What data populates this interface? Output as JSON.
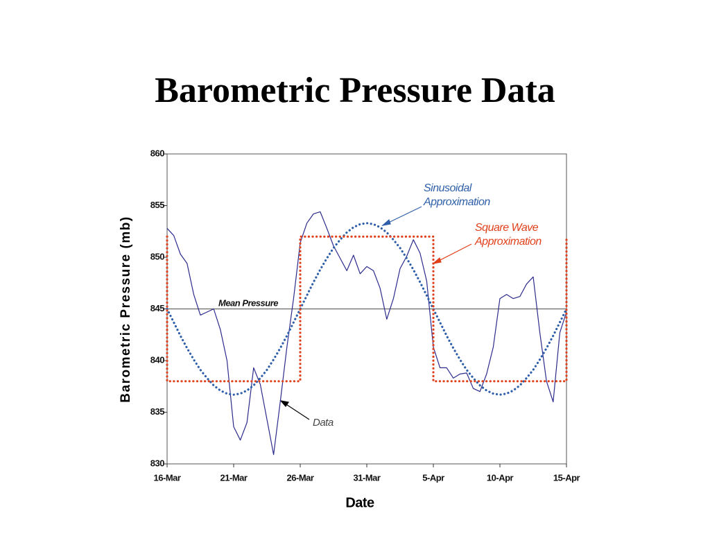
{
  "chart_data": {
    "type": "line",
    "title": "Barometric Pressure Data",
    "xlabel": "Date",
    "ylabel": "Barometric Pressure (mb)",
    "xlim": [
      0,
      30
    ],
    "ylim": [
      830,
      860
    ],
    "xticks": [
      {
        "value": 0,
        "label": "16-Mar"
      },
      {
        "value": 5,
        "label": "21-Mar"
      },
      {
        "value": 10,
        "label": "26-Mar"
      },
      {
        "value": 15,
        "label": "31-Mar"
      },
      {
        "value": 20,
        "label": "5-Apr"
      },
      {
        "value": 25,
        "label": "10-Apr"
      },
      {
        "value": 30,
        "label": "15-Apr"
      }
    ],
    "yticks": [
      830,
      835,
      840,
      845,
      850,
      855,
      860
    ],
    "hlines": [
      {
        "value": 845,
        "color": "#666666"
      }
    ],
    "series": [
      {
        "color": "#2b2a8c",
        "style": "solid",
        "x": [
          0,
          0.5,
          1,
          1.5,
          2,
          2.5,
          3,
          3.5,
          4,
          4.5,
          5,
          5.5,
          6,
          6.5,
          7,
          7.5,
          8,
          8.5,
          9,
          9.5,
          10,
          10.5,
          11,
          11.5,
          12,
          12.5,
          13,
          13.5,
          14,
          14.5,
          15,
          15.5,
          16,
          16.5,
          17,
          17.5,
          18,
          18.5,
          19,
          19.5,
          20,
          20.5,
          21,
          21.5,
          22,
          22.5,
          23,
          23.5,
          24,
          24.5,
          25,
          25.5,
          26,
          26.5,
          27,
          27.5,
          28,
          28.5,
          29,
          29.5,
          30
        ],
        "values": [
          852.8,
          852.1,
          850.3,
          849.4,
          846.4,
          844.4,
          844.7,
          845.0,
          843.0,
          840.0,
          833.6,
          832.3,
          834.0,
          839.3,
          837.7,
          834.3,
          830.9,
          836.0,
          841.3,
          846.0,
          851.4,
          853.3,
          854.2,
          854.4,
          852.8,
          851.1,
          849.9,
          848.7,
          850.2,
          848.4,
          849.1,
          848.7,
          847.0,
          844.0,
          846.0,
          848.9,
          850.1,
          851.7,
          850.4,
          847.7,
          841.3,
          839.3,
          839.3,
          838.3,
          838.7,
          838.8,
          837.3,
          837.0,
          838.7,
          841.3,
          846.0,
          846.4,
          846.0,
          846.2,
          847.4,
          848.1,
          842.7,
          838.0,
          836.0,
          842.7,
          844.7
        ]
      },
      {
        "color": "#2e5fa8",
        "style": "dotted",
        "x": [
          0,
          0.5,
          1,
          1.5,
          2,
          2.5,
          3,
          3.5,
          4,
          4.5,
          5,
          5.5,
          6,
          6.5,
          7,
          7.5,
          8,
          8.5,
          9,
          9.5,
          10,
          10.5,
          11,
          11.5,
          12,
          12.5,
          13,
          13.5,
          14,
          14.5,
          15,
          15.5,
          16,
          16.5,
          17,
          17.5,
          18,
          18.5,
          19,
          19.5,
          20,
          20.5,
          21,
          21.5,
          22,
          22.5,
          23,
          23.5,
          24,
          24.5,
          25,
          25.5,
          26,
          26.5,
          27,
          27.5,
          28,
          28.5,
          29,
          29.5,
          30
        ],
        "values": [
          845.0,
          843.7,
          842.4,
          841.2,
          840.1,
          839.1,
          838.3,
          837.6,
          837.1,
          836.8,
          836.7,
          836.8,
          837.1,
          837.6,
          838.3,
          839.1,
          840.1,
          841.2,
          842.4,
          843.7,
          845.0,
          846.3,
          847.6,
          848.8,
          849.9,
          850.9,
          851.7,
          852.4,
          852.9,
          853.2,
          853.3,
          853.2,
          852.9,
          852.4,
          851.7,
          850.9,
          849.9,
          848.8,
          847.6,
          846.3,
          845.0,
          843.7,
          842.4,
          841.2,
          840.1,
          839.1,
          838.3,
          837.6,
          837.1,
          836.8,
          836.7,
          836.8,
          837.1,
          837.6,
          838.3,
          839.1,
          840.1,
          841.2,
          842.4,
          843.7,
          845.0
        ]
      },
      {
        "color": "#e0401a",
        "style": "dotted",
        "x": [
          0,
          0,
          10,
          10,
          20,
          20,
          30,
          30
        ],
        "values": [
          852,
          838,
          838,
          852,
          852,
          838,
          838,
          852
        ]
      }
    ],
    "annotations": [
      {
        "lines": [
          "Sinusoidal",
          "Approximation"
        ],
        "color": "#2e5fa8"
      },
      {
        "lines": [
          "Square Wave",
          "Approximation"
        ],
        "color": "#e0401a"
      },
      {
        "lines": [
          "Data"
        ],
        "color": "#444444"
      },
      {
        "lines": [
          "Mean Pressure"
        ],
        "color": "#111111"
      }
    ]
  }
}
